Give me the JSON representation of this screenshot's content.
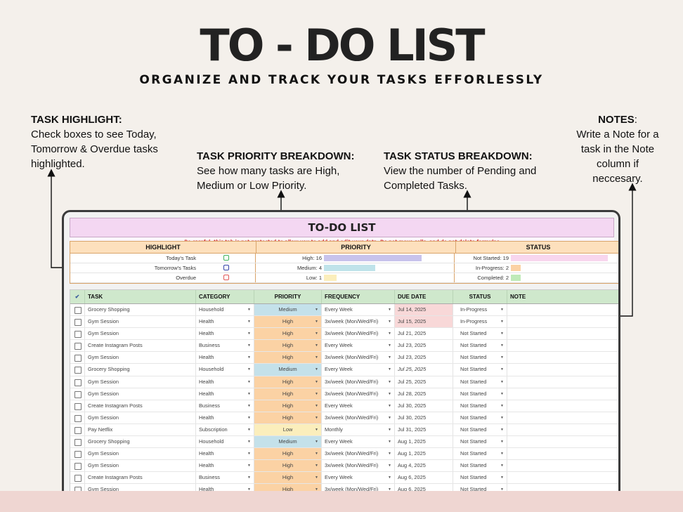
{
  "header": {
    "title": "TO - DO LIST",
    "subtitle": "ORGANIZE AND TRACK YOUR TASKS EFFORLESSLY"
  },
  "callouts": {
    "highlight": {
      "heading": "TASK HIGHLIGHT:",
      "body": "Check boxes to see Today, Tomorrow & Overdue tasks highlighted."
    },
    "priority": {
      "heading": "TASK PRIORITY BREAKDOWN:",
      "body": "See how many tasks are High, Medium or Low Priority."
    },
    "status": {
      "heading": "TASK STATUS BREAKDOWN:",
      "body": "View  the number of Pending and Completed Tasks."
    },
    "notes": {
      "heading": "NOTES",
      "body": "Write a Note for a task in the Note column if neccesary."
    }
  },
  "sheet": {
    "title": "TO-DO LIST",
    "warning": "Be careful, this tab is not protected to allow you to add and edit your data. Do not move cells, and do not delete formulas",
    "dashboard": {
      "headers": {
        "highlight": "HIGHLIGHT",
        "priority": "PRIORITY",
        "status": "STATUS"
      },
      "highlight_items": [
        {
          "label": "Today's Task",
          "color": "#3fb35b"
        },
        {
          "label": "Tomorrow's Tasks",
          "color": "#3342a8"
        },
        {
          "label": "Overdue",
          "color": "#e05656"
        }
      ],
      "priority_items": [
        {
          "label": "High: 16",
          "value": 16,
          "color": "#c8c3ec"
        },
        {
          "label": "Medium: 4",
          "value": 4,
          "color": "#bfe3ea"
        },
        {
          "label": "Low: 1",
          "value": 1,
          "color": "#fbeebc"
        }
      ],
      "status_items": [
        {
          "label": "Not Started: 19",
          "value": 19,
          "color": "#f8d6ee"
        },
        {
          "label": "In-Progress: 2",
          "value": 2,
          "color": "#fbd2a4"
        },
        {
          "label": "Completed: 2",
          "value": 2,
          "color": "#bfeab8"
        }
      ]
    },
    "columns": {
      "check": "✔",
      "task": "TASK",
      "category": "CATEGORY",
      "priority": "PRIORITY",
      "frequency": "FREQUENCY",
      "due": "DUE DATE",
      "status": "STATUS",
      "note": "NOTE"
    },
    "rows": [
      {
        "task": "Grocery Shopping",
        "category": "Household",
        "priority": "Medium",
        "frequency": "Every Week",
        "due": "Jul 14, 2025",
        "status": "In-Progress",
        "due_highlight": true
      },
      {
        "task": "Gym Session",
        "category": "Health",
        "priority": "High",
        "frequency": "3x/week (Mon/Wed/Fri)",
        "due": "Jul 15, 2025",
        "status": "In-Progress",
        "due_highlight": true
      },
      {
        "task": "Gym Session",
        "category": "Health",
        "priority": "High",
        "frequency": "3x/week (Mon/Wed/Fri)",
        "due": "Jul 21, 2025",
        "status": "Not Started"
      },
      {
        "task": "Create Instagram Posts",
        "category": "Business",
        "priority": "High",
        "frequency": "Every Week",
        "due": "Jul 23, 2025",
        "status": "Not Started"
      },
      {
        "task": "Gym Session",
        "category": "Health",
        "priority": "High",
        "frequency": "3x/week (Mon/Wed/Fri)",
        "due": "Jul 23, 2025",
        "status": "Not Started"
      },
      {
        "task": "Grocery Shopping",
        "category": "Household",
        "priority": "Medium",
        "frequency": "Every Week",
        "due": "Jul 25, 2025",
        "status": "Not Started",
        "due_italic": true
      },
      {
        "task": "Gym Session",
        "category": "Health",
        "priority": "High",
        "frequency": "3x/week (Mon/Wed/Fri)",
        "due": "Jul 25, 2025",
        "status": "Not Started"
      },
      {
        "task": "Gym Session",
        "category": "Health",
        "priority": "High",
        "frequency": "3x/week (Mon/Wed/Fri)",
        "due": "Jul 28, 2025",
        "status": "Not Started"
      },
      {
        "task": "Create Instagram Posts",
        "category": "Business",
        "priority": "High",
        "frequency": "Every Week",
        "due": "Jul 30, 2025",
        "status": "Not Started"
      },
      {
        "task": "Gym Session",
        "category": "Health",
        "priority": "High",
        "frequency": "3x/week (Mon/Wed/Fri)",
        "due": "Jul 30, 2025",
        "status": "Not Started"
      },
      {
        "task": "Pay Netflix",
        "category": "Subscription",
        "priority": "Low",
        "frequency": "Monthly",
        "due": "Jul 31, 2025",
        "status": "Not Started"
      },
      {
        "task": "Grocery Shopping",
        "category": "Household",
        "priority": "Medium",
        "frequency": "Every Week",
        "due": "Aug 1, 2025",
        "status": "Not Started"
      },
      {
        "task": "Gym Session",
        "category": "Health",
        "priority": "High",
        "frequency": "3x/week (Mon/Wed/Fri)",
        "due": "Aug 1, 2025",
        "status": "Not Started"
      },
      {
        "task": "Gym Session",
        "category": "Health",
        "priority": "High",
        "frequency": "3x/week (Mon/Wed/Fri)",
        "due": "Aug 4, 2025",
        "status": "Not Started"
      },
      {
        "task": "Create Instagram Posts",
        "category": "Business",
        "priority": "High",
        "frequency": "Every Week",
        "due": "Aug 6, 2025",
        "status": "Not Started"
      },
      {
        "task": "Gym Session",
        "category": "Health",
        "priority": "High",
        "frequency": "3x/week (Mon/Wed/Fri)",
        "due": "Aug 6, 2025",
        "status": "Not Started"
      }
    ]
  }
}
